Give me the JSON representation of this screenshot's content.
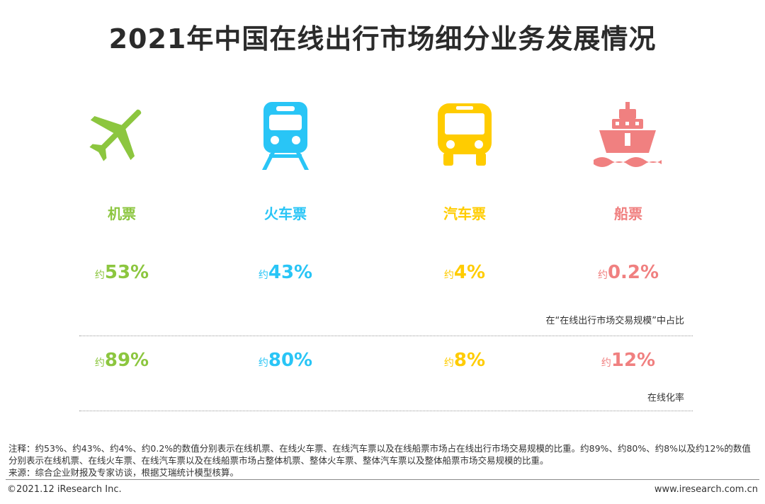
{
  "title": "2021年中国在线出行市场细分业务发展情况",
  "colors": {
    "plane": "#8cc63f",
    "train": "#29c5f6",
    "bus": "#ffcc00",
    "ship": "#f08080"
  },
  "categories": [
    {
      "key": "plane",
      "icon": "airplane-icon",
      "label": "机票",
      "prefix1": "约",
      "share": "53%",
      "prefix2": "约",
      "online_rate": "89%"
    },
    {
      "key": "train",
      "icon": "train-icon",
      "label": "火车票",
      "prefix1": "约",
      "share": "43%",
      "prefix2": "约",
      "online_rate": "80%"
    },
    {
      "key": "bus",
      "icon": "bus-icon",
      "label": "汽车票",
      "prefix1": "约",
      "share": "4%",
      "prefix2": "约",
      "online_rate": "8%"
    },
    {
      "key": "ship",
      "icon": "ship-icon",
      "label": "船票",
      "prefix1": "约",
      "share": "0.2%",
      "prefix2": "约",
      "online_rate": "12%"
    }
  ],
  "captions": {
    "share": "在“在线出行市场交易规模”中占比",
    "online_rate": "在线化率"
  },
  "notes": {
    "note": "注释：约53%、约43%、约4%、约0.2%的数值分别表示在线机票、在线火车票、在线汽车票以及在线船票市场占在线出行市场交易规模的比重。约89%、约80%、约8%以及约12%的数值分别表示在线机票、在线火车票、在线汽车票以及在线船票市场占整体机票、整体火车票、整体汽车票以及整体船票市场交易规模的比重。",
    "source": "来源：综合企业财报及专家访谈，根据艾瑞统计模型核算。"
  },
  "footer": {
    "copyright": "©2021.12 iResearch Inc.",
    "website": "www.iresearch.com.cn"
  }
}
